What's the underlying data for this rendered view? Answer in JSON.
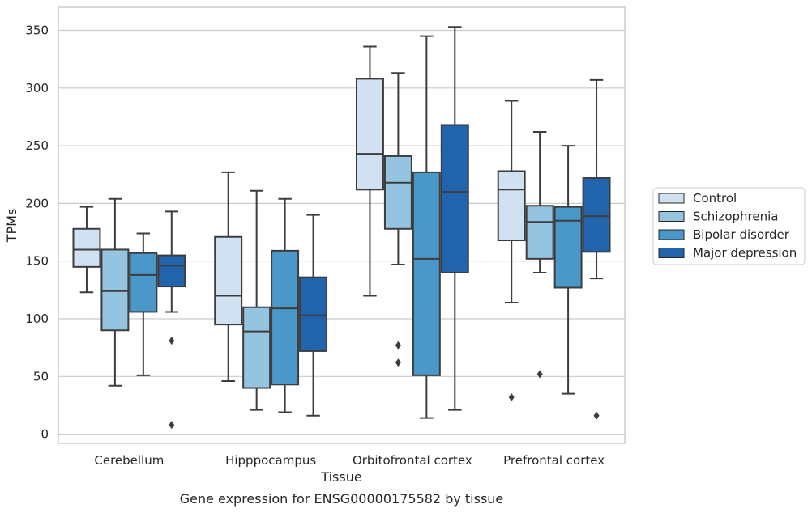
{
  "chart_data": {
    "type": "box",
    "xlabel": "Tissue",
    "ylabel": "TPMs",
    "caption": "Gene expression for ENSG00000175582 by tissue",
    "ylim": [
      -8,
      370
    ],
    "yticks": [
      0,
      50,
      100,
      150,
      200,
      250,
      300,
      350
    ],
    "grid": true,
    "legend_position": "right",
    "categories": [
      "Cerebellum",
      "Hipppocampus",
      "Orbitofrontal cortex",
      "Prefrontal cortex"
    ],
    "series": [
      {
        "name": "Control",
        "color": "#d0e1f2",
        "boxes": [
          {
            "whisker_low": 123,
            "q1": 145,
            "median": 160,
            "q3": 178,
            "whisker_high": 197,
            "outliers": []
          },
          {
            "whisker_low": 46,
            "q1": 95,
            "median": 120,
            "q3": 171,
            "whisker_high": 227,
            "outliers": []
          },
          {
            "whisker_low": 120,
            "q1": 212,
            "median": 243,
            "q3": 308,
            "whisker_high": 336,
            "outliers": []
          },
          {
            "whisker_low": 114,
            "q1": 168,
            "median": 212,
            "q3": 228,
            "whisker_high": 289,
            "outliers": [
              32
            ]
          }
        ]
      },
      {
        "name": "Schizophrenia",
        "color": "#94c4df",
        "boxes": [
          {
            "whisker_low": 42,
            "q1": 90,
            "median": 124,
            "q3": 160,
            "whisker_high": 204,
            "outliers": []
          },
          {
            "whisker_low": 21,
            "q1": 40,
            "median": 89,
            "q3": 110,
            "whisker_high": 211,
            "outliers": []
          },
          {
            "whisker_low": 147,
            "q1": 178,
            "median": 218,
            "q3": 241,
            "whisker_high": 313,
            "outliers": [
              77,
              62
            ]
          },
          {
            "whisker_low": 140,
            "q1": 152,
            "median": 184,
            "q3": 198,
            "whisker_high": 262,
            "outliers": [
              52
            ]
          }
        ]
      },
      {
        "name": "Bipolar disorder",
        "color": "#4a98c9",
        "boxes": [
          {
            "whisker_low": 51,
            "q1": 106,
            "median": 138,
            "q3": 157,
            "whisker_high": 174,
            "outliers": []
          },
          {
            "whisker_low": 19,
            "q1": 43,
            "median": 109,
            "q3": 159,
            "whisker_high": 204,
            "outliers": []
          },
          {
            "whisker_low": 14,
            "q1": 51,
            "median": 152,
            "q3": 227,
            "whisker_high": 345,
            "outliers": []
          },
          {
            "whisker_low": 35,
            "q1": 127,
            "median": 185,
            "q3": 197,
            "whisker_high": 250,
            "outliers": []
          }
        ]
      },
      {
        "name": "Major depression",
        "color": "#2164ab",
        "boxes": [
          {
            "whisker_low": 106,
            "q1": 128,
            "median": 146,
            "q3": 155,
            "whisker_high": 193,
            "outliers": [
              81,
              8
            ]
          },
          {
            "whisker_low": 16,
            "q1": 72,
            "median": 103,
            "q3": 136,
            "whisker_high": 190,
            "outliers": []
          },
          {
            "whisker_low": 21,
            "q1": 140,
            "median": 210,
            "q3": 268,
            "whisker_high": 353,
            "outliers": []
          },
          {
            "whisker_low": 135,
            "q1": 158,
            "median": 189,
            "q3": 222,
            "whisker_high": 307,
            "outliers": [
              16
            ]
          }
        ]
      }
    ]
  }
}
